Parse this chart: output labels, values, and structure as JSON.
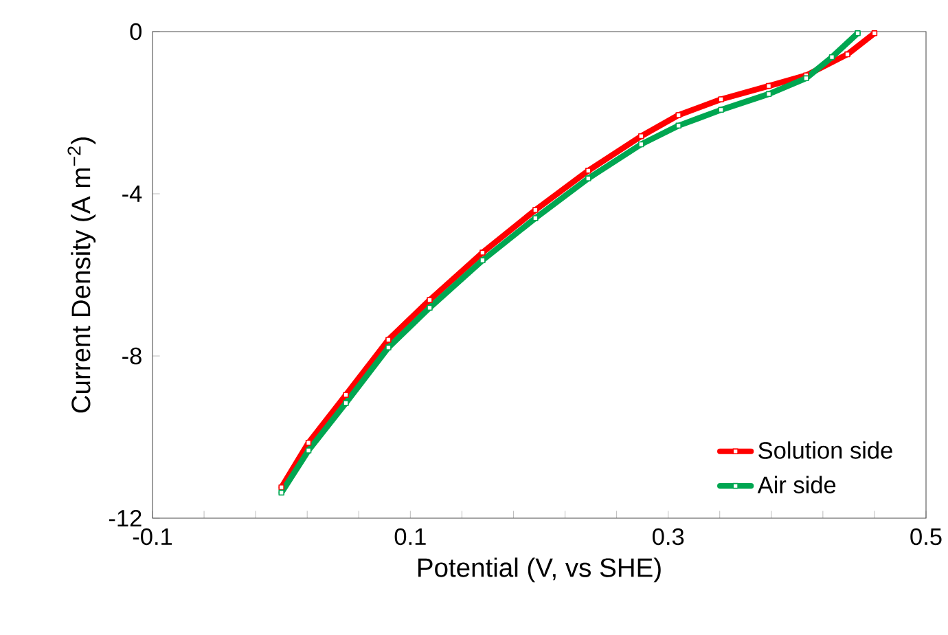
{
  "chart_data": {
    "type": "line",
    "xlabel": "Potential (V, vs SHE)",
    "ylabel": "Current Density (A m$^{−2}$)",
    "xlim": [
      -0.1,
      0.5
    ],
    "ylim": [
      -12,
      0
    ],
    "xticks": [
      -0.1,
      {
        "value": -0.06,
        "label": null
      },
      {
        "value": -0.02,
        "label": null
      },
      {
        "value": 0.02,
        "label": null
      },
      {
        "value": 0.06,
        "label": null
      },
      0.1,
      {
        "value": 0.14,
        "label": null
      },
      {
        "value": 0.18,
        "label": null
      },
      {
        "value": 0.22,
        "label": null
      },
      {
        "value": 0.26,
        "label": null
      },
      0.3,
      {
        "value": 0.34,
        "label": null
      },
      {
        "value": 0.38,
        "label": null
      },
      {
        "value": 0.42,
        "label": null
      },
      {
        "value": 0.46,
        "label": null
      },
      0.5
    ],
    "yticks": [
      0,
      -4,
      -8,
      -12
    ],
    "legend": "bottom right",
    "marker": "square",
    "series": [
      {
        "name": "Solution side",
        "color": "#ff0000",
        "x": [
          0.0,
          0.021,
          0.05,
          0.083,
          0.115,
          0.156,
          0.197,
          0.238,
          0.279,
          0.308,
          0.341,
          0.378,
          0.407,
          0.439,
          0.46
        ],
        "values": [
          -11.24,
          -10.14,
          -8.96,
          -7.6,
          -6.62,
          -5.45,
          -4.4,
          -3.43,
          -2.58,
          -2.06,
          -1.67,
          -1.34,
          -1.08,
          -0.56,
          -0.04
        ]
      },
      {
        "name": "Air side",
        "color": "#00a651",
        "x": [
          0.0,
          0.021,
          0.05,
          0.083,
          0.115,
          0.156,
          0.197,
          0.238,
          0.279,
          0.308,
          0.341,
          0.378,
          0.407,
          0.427,
          0.447
        ],
        "values": [
          -11.37,
          -10.33,
          -9.16,
          -7.79,
          -6.81,
          -5.64,
          -4.6,
          -3.62,
          -2.78,
          -2.32,
          -1.93,
          -1.54,
          -1.15,
          -0.63,
          -0.04
        ]
      }
    ]
  }
}
